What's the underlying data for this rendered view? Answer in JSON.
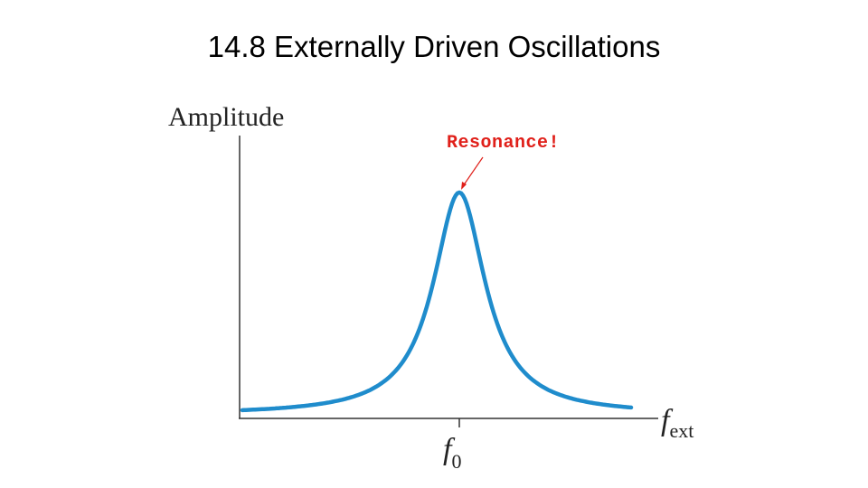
{
  "title": "14.8 Externally Driven Oscillations",
  "diagram": {
    "y_axis_label": "Amplitude",
    "x_axis_label": {
      "base": "f",
      "subscript": "ext"
    },
    "tick_label": {
      "base": "f",
      "subscript": "0"
    },
    "annotation": "Resonance!"
  }
}
